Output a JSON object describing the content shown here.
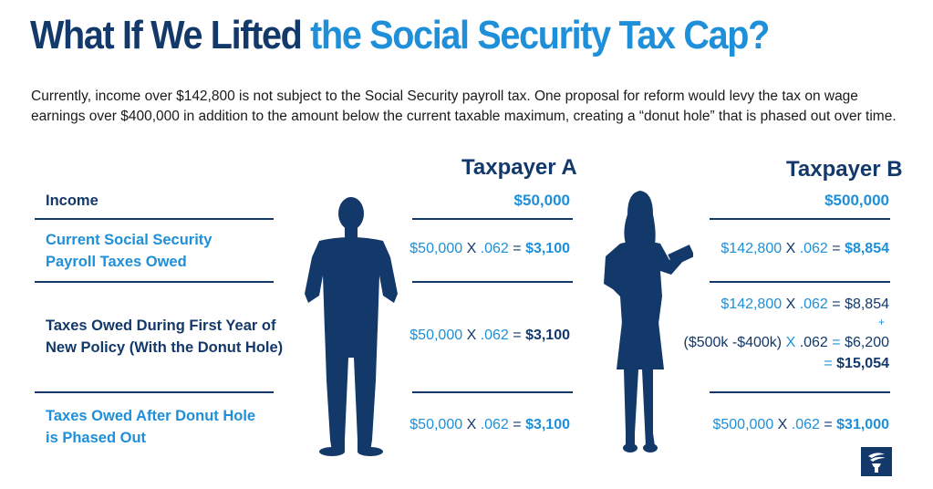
{
  "title": {
    "part1": "What If We Lifted ",
    "part2": "the Social Security Tax Cap?"
  },
  "intro": "Currently, income over $142,800 is not subject to the Social Security payroll tax. One proposal for reform would levy the tax on wage earnings over $400,000 in addition to the amount below the current taxable maximum, creating a “donut hole” that is phased out over time.",
  "columns": {
    "a": "Taxpayer A",
    "b": "Taxpayer B"
  },
  "rows": {
    "income": {
      "label": "Income",
      "a": "$50,000",
      "b": "$500,000"
    },
    "current": {
      "label1": "Current Social Security",
      "label2": "Payroll Taxes Owed",
      "a": {
        "amount": "$50,000",
        "x": " X ",
        "rate": ".062",
        "eq": " = ",
        "result": "$3,100"
      },
      "b": {
        "amount": "$142,800",
        "x": " X ",
        "rate": ".062",
        "eq": " = ",
        "result": "$8,854"
      }
    },
    "first_year": {
      "label1": "Taxes Owed During First Year of",
      "label2": "New Policy (With the Donut Hole)",
      "a": {
        "amount": "$50,000",
        "x": " X ",
        "rate": ".062",
        "eq": " = ",
        "result": "$3,100"
      },
      "b": {
        "line1_amount": "$142,800",
        "line1_x": " X ",
        "line1_rate": ".062",
        "line1_eq": " = ",
        "line1_result": "$8,854",
        "plus": "+",
        "line2_amount": "($500k -$400k)",
        "line2_x": " X ",
        "line2_rate": ".062",
        "line2_eq": " = ",
        "line2_result": "$6,200",
        "total_eq": "= ",
        "total": "$15,054"
      }
    },
    "after": {
      "label1": "Taxes Owed After Donut Hole",
      "label2": "is Phased Out",
      "a": {
        "amount": "$50,000",
        "x": " X ",
        "rate": ".062",
        "eq": " = ",
        "result": "$3,100"
      },
      "b": {
        "amount": "$500,000",
        "x": " X ",
        "rate": ".062",
        "eq": " = ",
        "result": "$31,000"
      }
    }
  },
  "icons": {
    "man": "man-silhouette-icon",
    "woman": "woman-with-tablet-silhouette-icon",
    "logo": "torch-logo-icon"
  },
  "colors": {
    "navy": "#13396b",
    "blue": "#1e8fd8"
  }
}
